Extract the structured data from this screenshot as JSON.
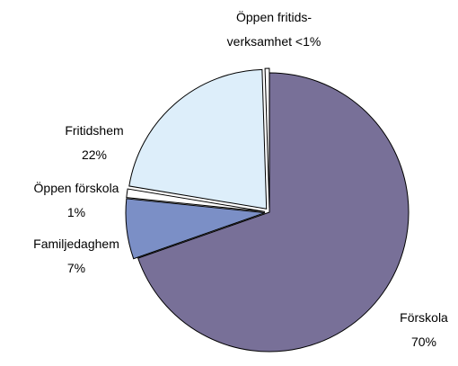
{
  "chart_data": {
    "type": "pie",
    "categories": [
      "Förskola",
      "Familjedaghem",
      "Öppen förskola",
      "Fritidshem",
      "Öppen fritids-\nverksamhet"
    ],
    "values": [
      70,
      7,
      1,
      22,
      0.5
    ],
    "value_labels": [
      "70%",
      "7%",
      "1%",
      "22%",
      "<1%"
    ],
    "colors": [
      "#787098",
      "#7b8fc6",
      "#ffffff",
      "#ddeefa",
      "#ffffff"
    ]
  }
}
